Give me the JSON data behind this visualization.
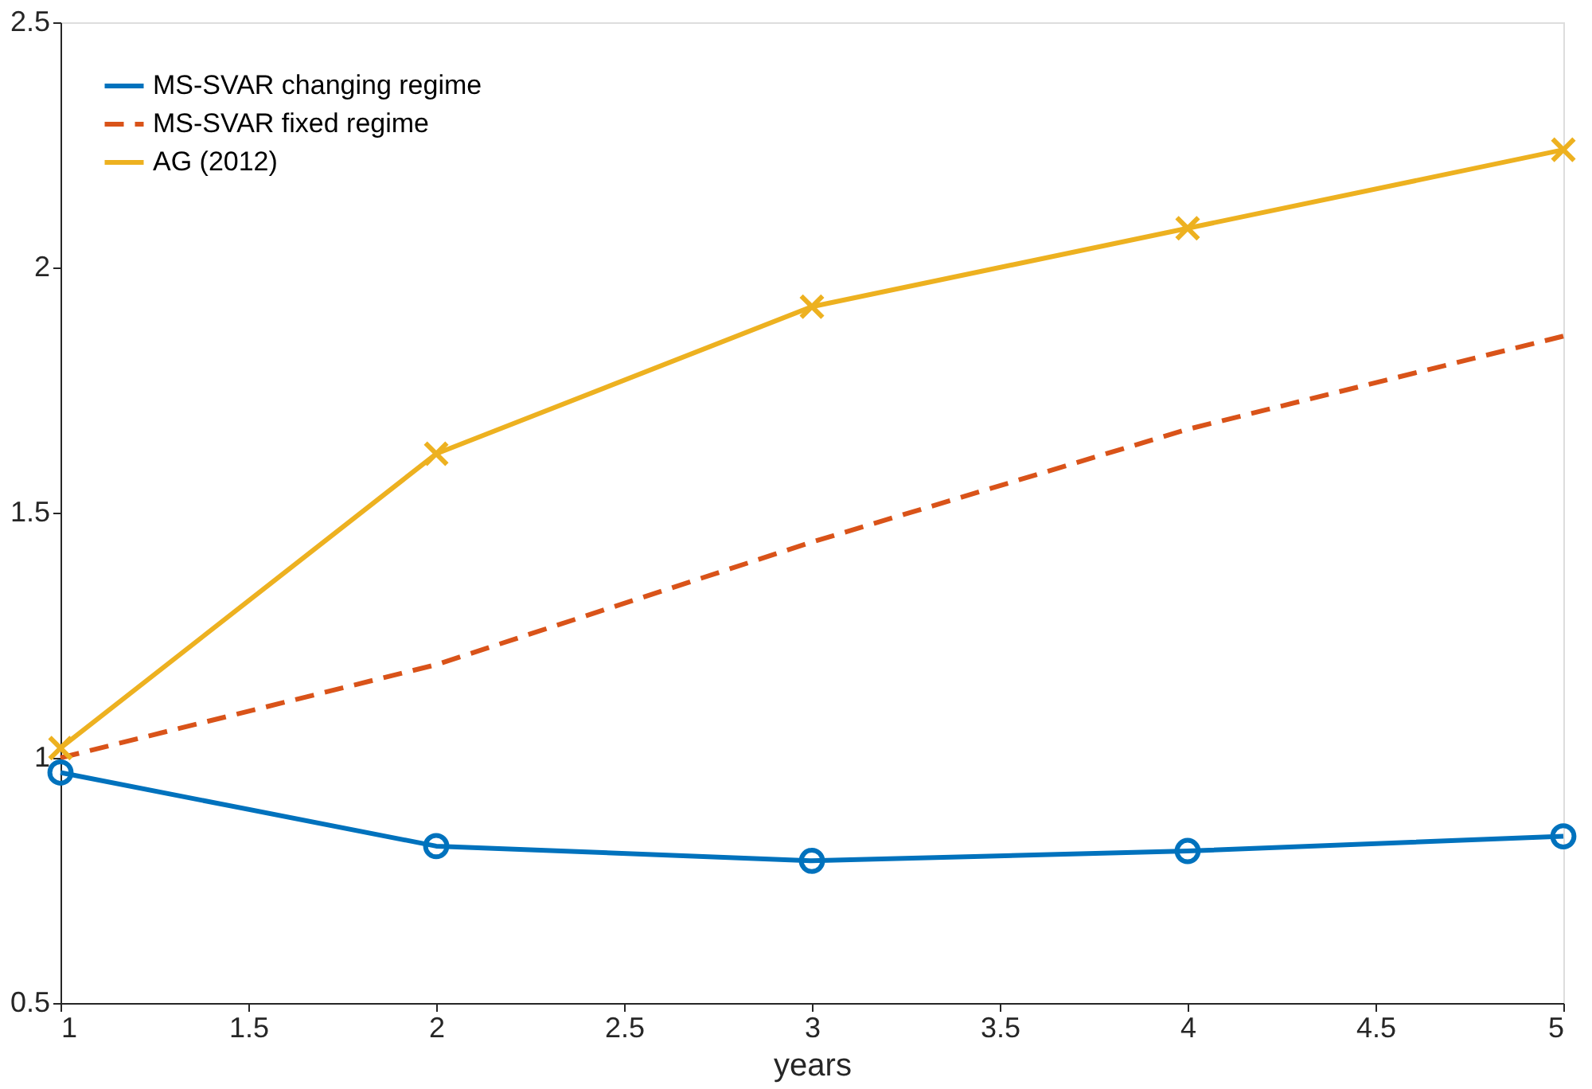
{
  "chart_data": {
    "type": "line",
    "xlabel": "years",
    "x": [
      1,
      2,
      3,
      4,
      5
    ],
    "xlim": [
      1,
      5
    ],
    "xticks": [
      1,
      1.5,
      2,
      2.5,
      3,
      3.5,
      4,
      4.5,
      5
    ],
    "ylim": [
      0.5,
      2.5
    ],
    "yticks": [
      0.5,
      1,
      1.5,
      2,
      2.5
    ],
    "grid": false,
    "legend": "top left",
    "series": [
      {
        "name": "MS-SVAR changing regime",
        "color": "#0072bd",
        "values": [
          0.97,
          0.82,
          0.79,
          0.81,
          0.84
        ],
        "marker": "circle",
        "line_style": "solid"
      },
      {
        "name": "MS-SVAR fixed regime",
        "color": "#d95319",
        "values": [
          1.0,
          1.19,
          1.44,
          1.67,
          1.86
        ],
        "marker": "none",
        "line_style": "dashed"
      },
      {
        "name": "AG (2012)",
        "color": "#edb120",
        "values": [
          1.02,
          1.62,
          1.92,
          2.08,
          2.24
        ],
        "marker": "cross",
        "line_style": "solid"
      }
    ]
  }
}
